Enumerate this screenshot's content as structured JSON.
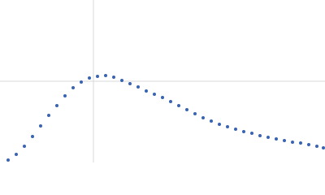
{
  "chart_data": {
    "type": "scatter",
    "x": [
      0.01,
      0.02,
      0.03,
      0.04,
      0.05,
      0.06,
      0.07,
      0.08,
      0.09,
      0.1,
      0.11,
      0.12,
      0.13,
      0.14,
      0.15,
      0.16,
      0.17,
      0.18,
      0.19,
      0.2,
      0.21,
      0.22,
      0.23,
      0.24,
      0.25,
      0.26,
      0.27,
      0.28,
      0.29,
      0.3,
      0.31,
      0.32,
      0.33,
      0.34,
      0.35,
      0.36,
      0.37,
      0.38,
      0.39,
      0.398
    ],
    "series": [
      {
        "color": "#3a64b0",
        "values": [
          0.03,
          0.1,
          0.2,
          0.32,
          0.45,
          0.58,
          0.7,
          0.82,
          0.92,
          0.99,
          1.04,
          1.06,
          1.07,
          1.05,
          1.01,
          0.97,
          0.93,
          0.88,
          0.84,
          0.8,
          0.75,
          0.7,
          0.65,
          0.6,
          0.55,
          0.51,
          0.47,
          0.44,
          0.41,
          0.38,
          0.36,
          0.33,
          0.31,
          0.29,
          0.27,
          0.25,
          0.24,
          0.22,
          0.2,
          0.18
        ]
      }
    ],
    "xlim": [
      0,
      0.4
    ],
    "ylim": [
      0,
      2
    ],
    "xticks": [
      0.115
    ],
    "yticks": [
      1
    ],
    "grid": true
  }
}
